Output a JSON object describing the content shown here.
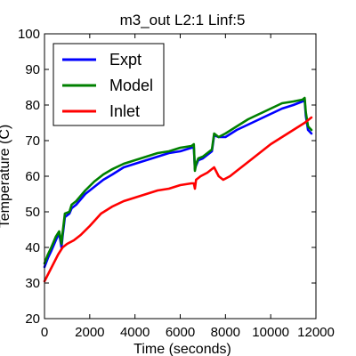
{
  "chart_data": {
    "type": "line",
    "title": "m3_out L2:1 Linf:5",
    "xlabel": "Time (seconds)",
    "ylabel": "Temperature (C)",
    "xlim": [
      0,
      12000
    ],
    "ylim": [
      20,
      100
    ],
    "xticks": [
      0,
      2000,
      4000,
      6000,
      8000,
      10000,
      12000
    ],
    "yticks": [
      20,
      30,
      40,
      50,
      60,
      70,
      80,
      90,
      100
    ],
    "grid": false,
    "legend_position": "top-left",
    "series": [
      {
        "name": "Expt",
        "color": "#0000ff",
        "x": [
          0,
          150,
          300,
          500,
          650,
          750,
          800,
          900,
          1100,
          1200,
          1400,
          1800,
          2200,
          2600,
          3000,
          3500,
          4000,
          4500,
          5000,
          5500,
          6000,
          6500,
          6600,
          6650,
          6700,
          6800,
          7000,
          7200,
          7400,
          7500,
          7700,
          8000,
          8500,
          9000,
          9500,
          10000,
          10500,
          11000,
          11400,
          11500,
          11550,
          11650,
          11800
        ],
        "y": [
          34.5,
          37,
          39,
          42,
          44,
          40,
          43,
          48.5,
          49.5,
          51,
          52,
          55,
          57,
          59,
          60.5,
          62.5,
          63.5,
          64.5,
          65.5,
          66.5,
          67,
          68,
          68,
          62,
          63,
          64.5,
          65,
          66,
          67,
          71.5,
          71,
          71,
          73,
          74.5,
          76,
          77.5,
          79,
          80,
          81,
          81.5,
          77,
          73,
          72
        ]
      },
      {
        "name": "Model",
        "color": "#008000",
        "x": [
          0,
          150,
          300,
          500,
          650,
          750,
          800,
          900,
          1100,
          1200,
          1400,
          1800,
          2200,
          2600,
          3000,
          3500,
          4000,
          4500,
          5000,
          5500,
          6000,
          6500,
          6600,
          6650,
          6700,
          6800,
          7000,
          7200,
          7400,
          7500,
          7700,
          8000,
          8500,
          9000,
          9500,
          10000,
          10500,
          11000,
          11400,
          11500,
          11550,
          11650,
          11800
        ],
        "y": [
          35.5,
          38,
          40,
          43,
          44.5,
          41,
          44,
          49.5,
          50,
          52,
          53,
          56,
          58.5,
          60.5,
          62,
          63.5,
          64.5,
          65.5,
          66.5,
          67,
          68,
          68.5,
          69,
          61.5,
          63.5,
          65,
          65.5,
          66.5,
          67.5,
          72,
          71,
          72,
          74,
          76,
          77.5,
          79,
          80.5,
          81,
          81.5,
          82,
          78,
          74,
          73
        ]
      },
      {
        "name": "Inlet",
        "color": "#ff0000",
        "x": [
          0,
          200,
          400,
          600,
          800,
          1000,
          1300,
          1600,
          2000,
          2500,
          3000,
          3500,
          4000,
          4500,
          5000,
          5500,
          6000,
          6500,
          6600,
          6650,
          6700,
          6900,
          7200,
          7500,
          7700,
          7900,
          8200,
          8500,
          9000,
          9500,
          10000,
          10500,
          11000,
          11500,
          11800
        ],
        "y": [
          30.5,
          33,
          35.5,
          38,
          40,
          41,
          42,
          43.5,
          46,
          49.5,
          51.5,
          53,
          54,
          55,
          56,
          56.5,
          57.5,
          58,
          58,
          56.5,
          59,
          60,
          61,
          62.5,
          60,
          59,
          60,
          61.5,
          64,
          66.5,
          69,
          71,
          73,
          75,
          76.5
        ]
      }
    ]
  }
}
